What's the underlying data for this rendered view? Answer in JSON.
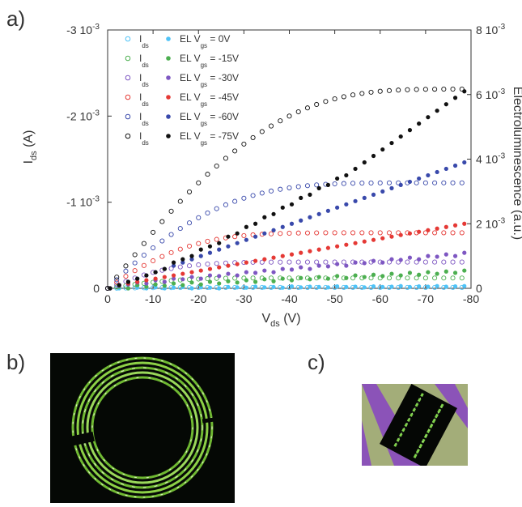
{
  "panel_labels": {
    "a": "a)",
    "b": "b)",
    "c": "c)"
  },
  "colors": {
    "axis": "#333333",
    "vgs0": "#4fc3f7",
    "vgs15": "#4caf50",
    "vgs30": "#7e57c2",
    "vgs45": "#e53935",
    "vgs60": "#3949ab",
    "vgs75": "#111111"
  },
  "chart_data": {
    "type": "scatter",
    "xlabel": "V",
    "xlabel_sub": "ds",
    "xlabel_unit": "(V)",
    "ylabel_left": "I",
    "ylabel_left_sub": "ds",
    "ylabel_left_unit": "(A)",
    "ylabel_right": "Electroluminescence (a.u.)",
    "xlim": [
      0,
      -80
    ],
    "ylim_left": [
      0,
      -0.003
    ],
    "ylim_right": [
      0,
      0.008
    ],
    "x_ticks": [
      0,
      -10,
      -20,
      -30,
      -40,
      -50,
      -60,
      -70,
      -80
    ],
    "x_tick_labels": [
      "0",
      "-10",
      "-20",
      "-30",
      "-40",
      "-50",
      "-60",
      "-70",
      "-80"
    ],
    "y_left_ticks": [
      0,
      -0.001,
      -0.002,
      -0.003
    ],
    "y_left_tick_labels": [
      "0",
      "-1 10",
      "-2 10",
      "-3 10"
    ],
    "y_left_tick_exps": [
      "",
      "-3",
      "-3",
      "-3"
    ],
    "y_right_ticks": [
      0,
      0.002,
      0.004,
      0.006,
      0.008
    ],
    "y_right_tick_labels": [
      "0",
      "2 10",
      "4 10",
      "6 10",
      "8 10"
    ],
    "y_right_tick_exps": [
      "",
      "-3",
      "-3",
      "-3",
      "-3"
    ],
    "legend_placement": "top-left",
    "x": [
      0,
      -2,
      -4,
      -6,
      -8,
      -10,
      -12,
      -14,
      -16,
      -18,
      -20,
      -22,
      -24,
      -26,
      -28,
      -30,
      -32,
      -34,
      -36,
      -38,
      -40,
      -42,
      -44,
      -46,
      -48,
      -50,
      -52,
      -54,
      -56,
      -58,
      -60,
      -62,
      -64,
      -66,
      -68,
      -70,
      -72,
      -74,
      -76,
      -78
    ],
    "series": [
      {
        "name": "V = 0V",
        "vgs": "0V",
        "ids": [
          0,
          -2e-06,
          -4e-06,
          -5e-06,
          -6e-06,
          -7e-06,
          -8e-06,
          -8e-06,
          -9e-06,
          -9e-06,
          -1e-05,
          -1e-05,
          -1e-05,
          -1e-05,
          -1e-05,
          -1e-05,
          -1e-05,
          -1e-05,
          -1e-05,
          -1e-05,
          -1e-05,
          -1e-05,
          -1e-05,
          -1e-05,
          -1e-05,
          -1e-05,
          -1e-05,
          -1e-05,
          -1e-05,
          -1e-05,
          -1e-05,
          -1e-05,
          -1e-05,
          -1e-05,
          -1e-05,
          -1e-05,
          -1e-05,
          -1e-05,
          -1e-05,
          -1e-05
        ],
        "el": [
          0,
          0,
          0,
          2e-05,
          0,
          3e-05,
          0,
          2e-05,
          4e-05,
          0,
          3e-05,
          2e-05,
          0,
          4e-05,
          3e-05,
          2e-05,
          5e-05,
          3e-05,
          4e-05,
          2e-05,
          6e-05,
          3e-05,
          5e-05,
          4e-05,
          3e-05,
          6e-05,
          4e-05,
          5e-05,
          3e-05,
          6e-05,
          4e-05,
          5e-05,
          7e-05,
          4e-05,
          6e-05,
          5e-05,
          7e-05,
          5e-05,
          6e-05,
          7e-05
        ]
      },
      {
        "name": "V = -15V",
        "vgs": "-15V",
        "ids": [
          0,
          -1.5e-05,
          -3e-05,
          -4.5e-05,
          -5.8e-05,
          -7e-05,
          -8e-05,
          -9e-05,
          -9.7e-05,
          -0.000103,
          -0.000108,
          -0.000112,
          -0.000115,
          -0.000117,
          -0.000118,
          -0.000119,
          -0.00012,
          -0.00012,
          -0.00012,
          -0.00012,
          -0.00012,
          -0.00012,
          -0.00012,
          -0.00012,
          -0.00012,
          -0.00012,
          -0.00012,
          -0.00012,
          -0.00012,
          -0.00012,
          -0.00012,
          -0.00012,
          -0.00012,
          -0.00012,
          -0.00012,
          -0.00012,
          -0.00012,
          -0.00012,
          -0.00012,
          -0.00012
        ],
        "el": [
          0,
          5e-05,
          0,
          0.0001,
          5e-05,
          0.00012,
          8e-05,
          0.00015,
          0.0001,
          0.00018,
          0.00012,
          0.0002,
          0.00015,
          0.00022,
          0.00018,
          0.00025,
          0.0002,
          0.00028,
          0.00022,
          0.0003,
          0.00025,
          0.00032,
          0.00028,
          0.00035,
          0.0003,
          0.00038,
          0.00032,
          0.0004,
          0.00035,
          0.00042,
          0.00038,
          0.00045,
          0.0004,
          0.00048,
          0.00042,
          0.0005,
          0.00045,
          0.00052,
          0.00048,
          0.00055
        ]
      },
      {
        "name": "V = -30V",
        "vgs": "-30V",
        "ids": [
          0,
          -4e-05,
          -8e-05,
          -0.00012,
          -0.000155,
          -0.000185,
          -0.00021,
          -0.00023,
          -0.000248,
          -0.000262,
          -0.000273,
          -0.000282,
          -0.000289,
          -0.000294,
          -0.000298,
          -0.0003,
          -0.000302,
          -0.000303,
          -0.000304,
          -0.000304,
          -0.000305,
          -0.000305,
          -0.000305,
          -0.000305,
          -0.000305,
          -0.000305,
          -0.000305,
          -0.000305,
          -0.000305,
          -0.000305,
          -0.000305,
          -0.000305,
          -0.000305,
          -0.000305,
          -0.000305,
          -0.000305,
          -0.000305,
          -0.000305,
          -0.000305,
          -0.000305
        ],
        "el": [
          0,
          8e-05,
          0.00012,
          0.00018,
          0.00015,
          0.00025,
          0.0002,
          0.0003,
          0.00028,
          0.00035,
          0.0003,
          0.0004,
          0.00038,
          0.00045,
          0.0004,
          0.0005,
          0.00048,
          0.00055,
          0.0005,
          0.0006,
          0.00058,
          0.00065,
          0.0006,
          0.0007,
          0.00068,
          0.00075,
          0.0007,
          0.0008,
          0.00078,
          0.00085,
          0.0008,
          0.0009,
          0.00088,
          0.00095,
          0.0009,
          0.001,
          0.00098,
          0.00105,
          0.001,
          0.0011
        ]
      },
      {
        "name": "V = -45V",
        "vgs": "-45V",
        "ids": [
          0,
          -7e-05,
          -0.00014,
          -0.000205,
          -0.000265,
          -0.00032,
          -0.00037,
          -0.000415,
          -0.000455,
          -0.00049,
          -0.00052,
          -0.000546,
          -0.000568,
          -0.000586,
          -0.0006,
          -0.000612,
          -0.000621,
          -0.000628,
          -0.000633,
          -0.000637,
          -0.00064,
          -0.000642,
          -0.000643,
          -0.000644,
          -0.000645,
          -0.000645,
          -0.000645,
          -0.000645,
          -0.000645,
          -0.000645,
          -0.000645,
          -0.000645,
          -0.000645,
          -0.000645,
          -0.000645,
          -0.000645,
          -0.000645,
          -0.000645,
          -0.000645,
          -0.000645
        ],
        "el": [
          0,
          0.0001,
          0.00015,
          0.0002,
          0.00025,
          0.0003,
          0.00035,
          0.0004,
          0.00045,
          0.0005,
          0.00055,
          0.0006,
          0.00065,
          0.0007,
          0.00075,
          0.0008,
          0.00085,
          0.0009,
          0.00095,
          0.001,
          0.00105,
          0.0011,
          0.00115,
          0.0012,
          0.00125,
          0.0013,
          0.00135,
          0.0014,
          0.00145,
          0.0015,
          0.00155,
          0.0016,
          0.00165,
          0.0017,
          0.00175,
          0.0018,
          0.00185,
          0.0019,
          0.00195,
          0.002
        ]
      },
      {
        "name": "V = -60V",
        "vgs": "-60V",
        "ids": [
          0,
          -0.0001,
          -0.0002,
          -0.000295,
          -0.000385,
          -0.00047,
          -0.00055,
          -0.000625,
          -0.000695,
          -0.00076,
          -0.00082,
          -0.000875,
          -0.000925,
          -0.00097,
          -0.00101,
          -0.001046,
          -0.001078,
          -0.001106,
          -0.00113,
          -0.00115,
          -0.001167,
          -0.001181,
          -0.001192,
          -0.001201,
          -0.001208,
          -0.001213,
          -0.001217,
          -0.00122,
          -0.001222,
          -0.001223,
          -0.001224,
          -0.001225,
          -0.001225,
          -0.001225,
          -0.001225,
          -0.001225,
          -0.001225,
          -0.001225,
          -0.001225,
          -0.001225
        ],
        "el": [
          0,
          0.0001,
          0.0002,
          0.0003,
          0.0004,
          0.0005,
          0.0006,
          0.0007,
          0.0008,
          0.0009,
          0.001,
          0.0011,
          0.0012,
          0.0013,
          0.0014,
          0.0015,
          0.0016,
          0.0017,
          0.0018,
          0.0019,
          0.002,
          0.0021,
          0.0022,
          0.0023,
          0.0024,
          0.0025,
          0.0026,
          0.0027,
          0.0028,
          0.0029,
          0.003,
          0.0031,
          0.0032,
          0.0033,
          0.0034,
          0.0035,
          0.0036,
          0.0037,
          0.0038,
          0.0039
        ]
      },
      {
        "name": "V = -75V",
        "vgs": "-75V",
        "ids": [
          0,
          -0.00013,
          -0.00026,
          -0.00039,
          -0.00052,
          -0.00065,
          -0.000775,
          -0.000895,
          -0.00101,
          -0.00112,
          -0.001225,
          -0.001325,
          -0.00142,
          -0.00151,
          -0.001595,
          -0.001675,
          -0.00175,
          -0.00182,
          -0.001885,
          -0.001945,
          -0.002,
          -0.00205,
          -0.002095,
          -0.002135,
          -0.00217,
          -0.0022,
          -0.002225,
          -0.002246,
          -0.002263,
          -0.002277,
          -0.002288,
          -0.002296,
          -0.002302,
          -0.002306,
          -0.002309,
          -0.002311,
          -0.002312,
          -0.002313,
          -0.002313,
          -0.002313
        ],
        "el": [
          0,
          0.0001,
          0.0002,
          0.0003,
          0.0004,
          0.0005,
          0.0006,
          0.0008,
          0.0009,
          0.001,
          0.0012,
          0.0013,
          0.0014,
          0.0016,
          0.0017,
          0.0019,
          0.002,
          0.0022,
          0.0023,
          0.0025,
          0.0026,
          0.0028,
          0.0029,
          0.0031,
          0.0032,
          0.0034,
          0.0035,
          0.0037,
          0.0039,
          0.0041,
          0.0043,
          0.0045,
          0.0047,
          0.0049,
          0.0051,
          0.0053,
          0.0055,
          0.0057,
          0.0059,
          0.0061
        ]
      }
    ],
    "legend": {
      "ids_label": "I",
      "ids_sub": "ds",
      "el_label": "EL",
      "vgs_label": "V",
      "vgs_sub": "gs",
      "entries": [
        "= 0V",
        "= -15V",
        "= -30V",
        "= -45V",
        "= -60V",
        "= -75V"
      ]
    }
  }
}
